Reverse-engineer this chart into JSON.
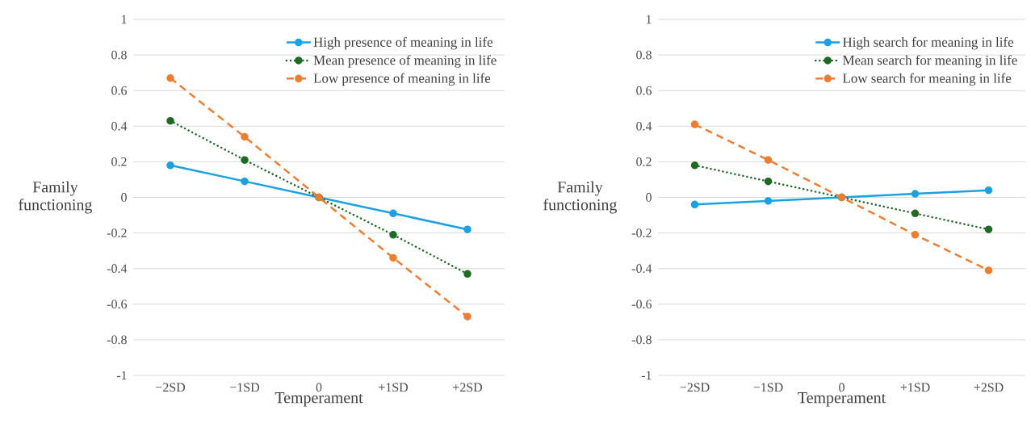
{
  "chart_data": [
    {
      "type": "line",
      "xlabel": "Temperament",
      "ylabel": "Family functioning",
      "categories": [
        "−2SD",
        "−1SD",
        "0",
        "+1SD",
        "+2SD"
      ],
      "series": [
        {
          "name": "High presence of meaning in life",
          "color": "#1ba1e2",
          "line_style": "solid",
          "values": [
            0.18,
            0.09,
            0,
            -0.09,
            -0.18
          ]
        },
        {
          "name": "Mean presence of meaning in life",
          "color": "#1e6b24",
          "line_style": "dotted",
          "values": [
            0.43,
            0.21,
            0,
            -0.21,
            -0.43
          ]
        },
        {
          "name": "Low presence of meaning in life",
          "color": "#ed7d31",
          "line_style": "dashed",
          "values": [
            0.67,
            0.34,
            0,
            -0.34,
            -0.67
          ]
        }
      ],
      "ylim": [
        -1,
        1
      ],
      "yticks": [
        -1,
        -0.8,
        -0.6,
        -0.4,
        -0.2,
        0,
        0.2,
        0.4,
        0.6,
        0.8,
        1
      ],
      "grid": "y",
      "legend": "top right",
      "marker": "circle"
    },
    {
      "type": "line",
      "xlabel": "Temperament",
      "ylabel": "Family functioning",
      "categories": [
        "−2SD",
        "−1SD",
        "0",
        "+1SD",
        "+2SD"
      ],
      "series": [
        {
          "name": "High search for meaning in life",
          "color": "#1ba1e2",
          "line_style": "solid",
          "values": [
            -0.04,
            -0.02,
            0,
            0.02,
            0.04
          ]
        },
        {
          "name": "Mean search for meaning in life",
          "color": "#1e6b24",
          "line_style": "dotted",
          "values": [
            0.18,
            0.09,
            0,
            -0.09,
            -0.18
          ]
        },
        {
          "name": "Low search for meaning in life",
          "color": "#ed7d31",
          "line_style": "dashed",
          "values": [
            0.41,
            0.21,
            0,
            -0.21,
            -0.41
          ]
        }
      ],
      "ylim": [
        -1,
        1
      ],
      "yticks": [
        -1,
        -0.8,
        -0.6,
        -0.4,
        -0.2,
        0,
        0.2,
        0.4,
        0.6,
        0.8,
        1
      ],
      "grid": "y",
      "legend": "top right",
      "marker": "circle"
    }
  ]
}
